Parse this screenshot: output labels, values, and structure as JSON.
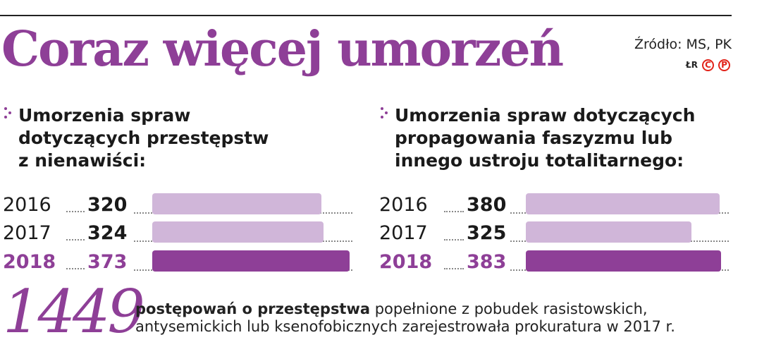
{
  "headline": "Coraz więcej umorzeń",
  "source": "Źródło: MS, PK",
  "credits": {
    "initials": "ŁR",
    "badge1": "C",
    "badge2": "P"
  },
  "colors": {
    "accent": "#8e3f97",
    "bar_light": "#d0b6d9",
    "bar_dark": "#8e3f97"
  },
  "chart_data": [
    {
      "type": "bar",
      "orientation": "horizontal",
      "title": "Umorzenia spraw dotyczących przestępstw z nienawiści:",
      "title_lines": [
        "Umorzenia spraw",
        "dotyczących przestępstw",
        "z nienawiści:"
      ],
      "categories": [
        "2016",
        "2017",
        "2018"
      ],
      "values": [
        320,
        324,
        373
      ],
      "value_labels": [
        "320",
        "324",
        "373"
      ],
      "highlight": "2018"
    },
    {
      "type": "bar",
      "orientation": "horizontal",
      "title": "Umorzenia spraw dotyczących propagowania faszyzmu lub innego ustroju totalitarnego:",
      "title_lines": [
        "Umorzenia spraw dotyczących",
        "propagowania faszyzmu lub",
        "innego ustroju totalitarnego:"
      ],
      "categories": [
        "2016",
        "2017",
        "2018"
      ],
      "values": [
        380,
        325,
        383
      ],
      "value_labels": [
        "380",
        "325",
        "383"
      ],
      "highlight": "2018"
    }
  ],
  "footer": {
    "number": "1449",
    "text_bold": "postępowań o przestępstwa",
    "text_rest": " popełnione z pobudek rasistowskich,",
    "line2": "antysemickich lub ksenofobicznych zarejestrowała prokuratura w 2017 r."
  }
}
